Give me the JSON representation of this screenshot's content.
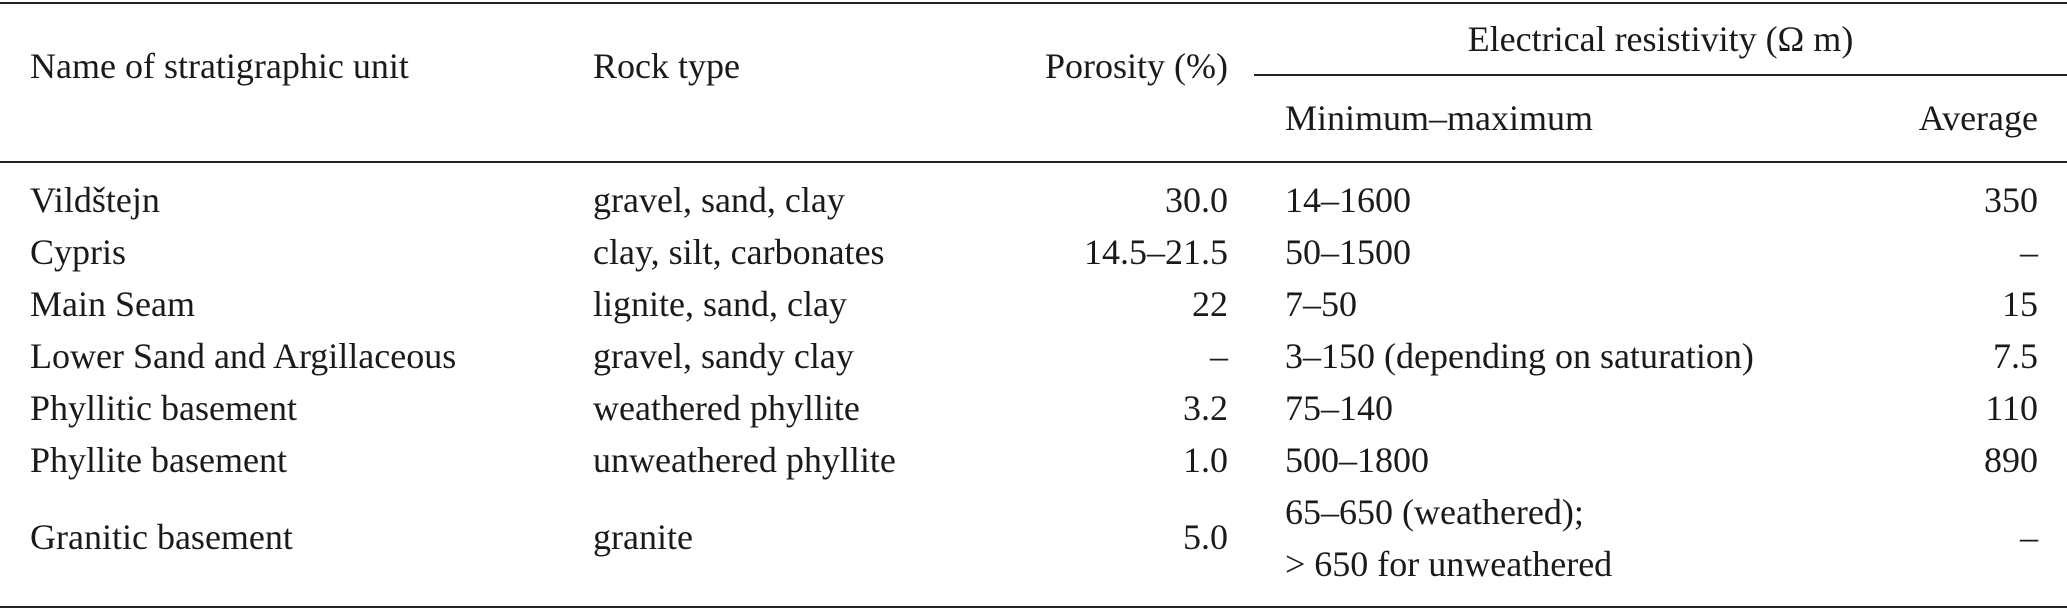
{
  "table": {
    "headers": {
      "name": "Name of stratigraphic unit",
      "rock_type": "Rock type",
      "porosity": "Porosity (%)",
      "resistivity_group": "Electrical resistivity (Ω m)",
      "min_max": "Minimum–maximum",
      "average": "Average"
    },
    "rows": [
      {
        "name": "Vildštejn",
        "rock_type": "gravel, sand, clay",
        "porosity": "30.0",
        "min_max": "14–1600",
        "average": "350"
      },
      {
        "name": "Cypris",
        "rock_type": "clay, silt, carbonates",
        "porosity": "14.5–21.5",
        "min_max": "50–1500",
        "average": "–"
      },
      {
        "name": "Main Seam",
        "rock_type": "lignite, sand, clay",
        "porosity": "22",
        "min_max": "7–50",
        "average": "15"
      },
      {
        "name": "Lower Sand and Argillaceous",
        "rock_type": "gravel, sandy clay",
        "porosity": "–",
        "min_max": "3–150 (depending on saturation)",
        "average": "7.5"
      },
      {
        "name": "Phyllitic basement",
        "rock_type": "weathered phyllite",
        "porosity": "3.2",
        "min_max": "75–140",
        "average": "110"
      },
      {
        "name": "Phyllite basement",
        "rock_type": "unweathered phyllite",
        "porosity": "1.0",
        "min_max": "500–1800",
        "average": "890"
      },
      {
        "name": "Granitic basement",
        "rock_type": "granite",
        "porosity": "5.0",
        "min_max_line1": "65–650 (weathered);",
        "min_max_line2": "> 650 for unweathered",
        "average": "–"
      }
    ]
  }
}
